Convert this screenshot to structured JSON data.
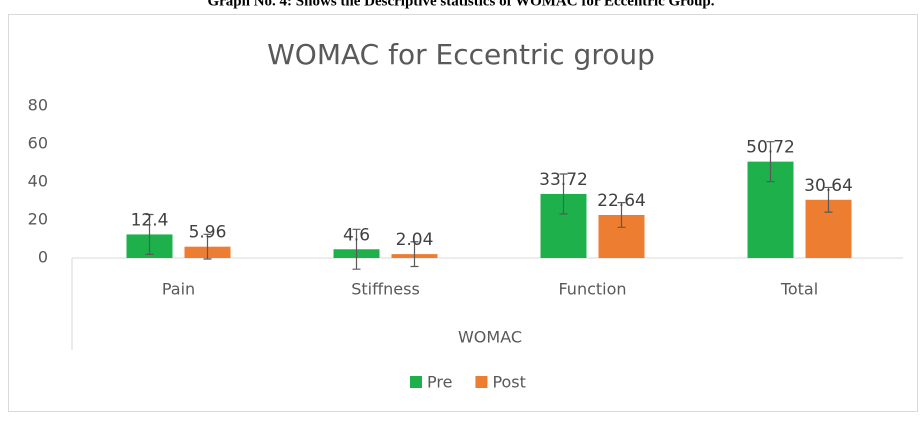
{
  "caption": "Graph No. 4: Shows the Descriptive statistics of WOMAC for Eccentric Group.",
  "chart_data": {
    "type": "bar",
    "title": "WOMAC for Eccentric group",
    "x_label": "WOMAC",
    "categories": [
      "Pain",
      "Stiffness",
      "Function",
      "Total"
    ],
    "series": [
      {
        "name": "Pre",
        "color": "#1db04b",
        "values": [
          12.4,
          4.6,
          33.72,
          50.72
        ],
        "errors": [
          10.5,
          10.5,
          10.5,
          10.5
        ]
      },
      {
        "name": "Post",
        "color": "#ed7d31",
        "values": [
          5.96,
          2.04,
          22.64,
          30.64
        ],
        "errors": [
          6.5,
          6.5,
          6.5,
          6.5
        ]
      }
    ],
    "ylim": [
      0,
      80
    ],
    "yticks": [
      0,
      20,
      40,
      60,
      80
    ],
    "grid": false,
    "legend": "bottom"
  }
}
